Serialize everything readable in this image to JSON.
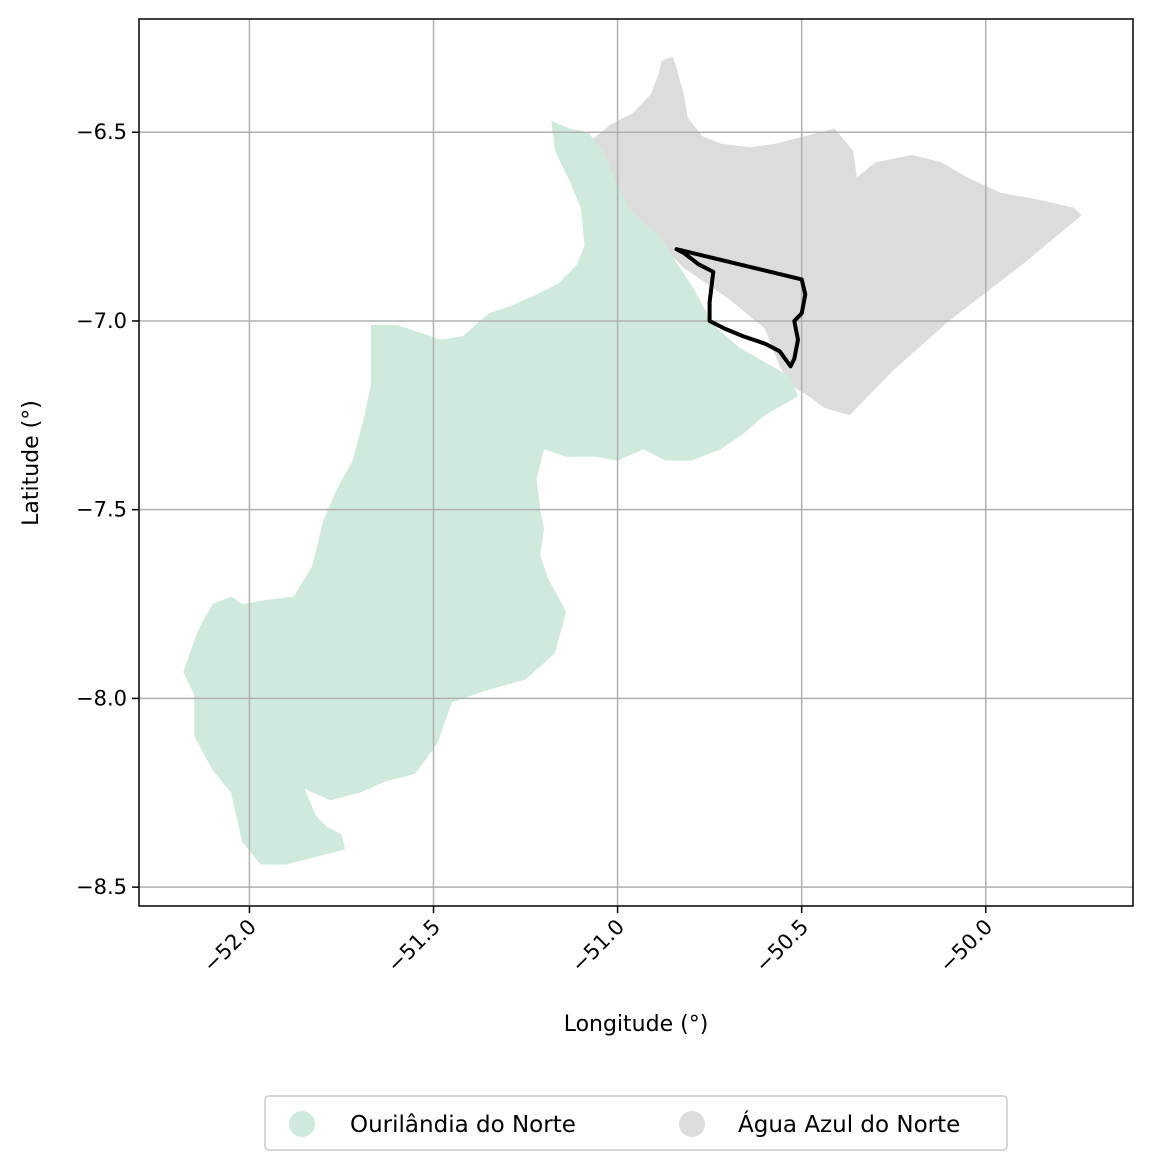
{
  "chart_data": {
    "type": "map",
    "xlabel": "Longitude (°)",
    "ylabel": "Latitude (°)",
    "xlim": [
      -52.3,
      -49.6
    ],
    "ylim": [
      -8.55,
      -6.2
    ],
    "xticks": [
      -52.0,
      -51.5,
      -51.0,
      -50.5,
      -50.0
    ],
    "xtick_labels": [
      "−52.0",
      "−51.5",
      "−51.0",
      "−50.5",
      "−50.0"
    ],
    "yticks": [
      -6.5,
      -7.0,
      -7.5,
      -8.0,
      -8.5
    ],
    "ytick_labels": [
      "−6.5",
      "−7.0",
      "−7.5",
      "−8.0",
      "−8.5"
    ],
    "grid": true,
    "legend_position": "bottom-center",
    "legend": [
      {
        "label": "Ourilândia do Norte",
        "color": "#cfeadd"
      },
      {
        "label": "Água Azul do Norte",
        "color": "#dcdcdc"
      }
    ],
    "regions": [
      {
        "name": "Água Azul do Norte",
        "color": "#dcdcdc",
        "coords": [
          [
            -51.07,
            -6.52
          ],
          [
            -51.02,
            -6.48
          ],
          [
            -50.96,
            -6.45
          ],
          [
            -50.91,
            -6.4
          ],
          [
            -50.89,
            -6.35
          ],
          [
            -50.88,
            -6.31
          ],
          [
            -50.85,
            -6.3
          ],
          [
            -50.84,
            -6.33
          ],
          [
            -50.82,
            -6.4
          ],
          [
            -50.81,
            -6.46
          ],
          [
            -50.77,
            -6.51
          ],
          [
            -50.72,
            -6.53
          ],
          [
            -50.64,
            -6.54
          ],
          [
            -50.57,
            -6.53
          ],
          [
            -50.49,
            -6.51
          ],
          [
            -50.41,
            -6.49
          ],
          [
            -50.36,
            -6.55
          ],
          [
            -50.35,
            -6.62
          ],
          [
            -50.3,
            -6.58
          ],
          [
            -50.2,
            -6.56
          ],
          [
            -50.12,
            -6.58
          ],
          [
            -50.05,
            -6.62
          ],
          [
            -49.96,
            -6.66
          ],
          [
            -49.85,
            -6.68
          ],
          [
            -49.76,
            -6.7
          ],
          [
            -49.74,
            -6.72
          ],
          [
            -49.9,
            -6.85
          ],
          [
            -50.1,
            -7.0
          ],
          [
            -50.25,
            -7.13
          ],
          [
            -50.37,
            -7.25
          ],
          [
            -50.44,
            -7.23
          ],
          [
            -50.48,
            -7.2
          ],
          [
            -50.53,
            -7.17
          ],
          [
            -50.56,
            -7.12
          ],
          [
            -50.6,
            -7.02
          ],
          [
            -50.7,
            -6.94
          ],
          [
            -50.82,
            -6.86
          ],
          [
            -50.91,
            -6.77
          ],
          [
            -50.98,
            -6.7
          ],
          [
            -51.04,
            -6.62
          ]
        ]
      },
      {
        "name": "Ourilândia do Norte",
        "color": "#cfeadd",
        "coords": [
          [
            -51.18,
            -6.47
          ],
          [
            -51.13,
            -6.49
          ],
          [
            -51.08,
            -6.5
          ],
          [
            -51.04,
            -6.55
          ],
          [
            -51.0,
            -6.64
          ],
          [
            -50.97,
            -6.7
          ],
          [
            -50.93,
            -6.74
          ],
          [
            -50.89,
            -6.77
          ],
          [
            -50.85,
            -6.83
          ],
          [
            -50.79,
            -6.92
          ],
          [
            -50.74,
            -7.01
          ],
          [
            -50.67,
            -7.07
          ],
          [
            -50.58,
            -7.12
          ],
          [
            -50.53,
            -7.15
          ],
          [
            -50.51,
            -7.2
          ],
          [
            -50.6,
            -7.25
          ],
          [
            -50.66,
            -7.3
          ],
          [
            -50.72,
            -7.34
          ],
          [
            -50.8,
            -7.37
          ],
          [
            -50.87,
            -7.37
          ],
          [
            -50.93,
            -7.34
          ],
          [
            -51.0,
            -7.37
          ],
          [
            -51.06,
            -7.36
          ],
          [
            -51.14,
            -7.36
          ],
          [
            -51.2,
            -7.34
          ],
          [
            -51.22,
            -7.42
          ],
          [
            -51.21,
            -7.5
          ],
          [
            -51.2,
            -7.55
          ],
          [
            -51.21,
            -7.62
          ],
          [
            -51.19,
            -7.68
          ],
          [
            -51.14,
            -7.77
          ],
          [
            -51.17,
            -7.88
          ],
          [
            -51.25,
            -7.95
          ],
          [
            -51.36,
            -7.98
          ],
          [
            -51.45,
            -8.01
          ],
          [
            -51.49,
            -8.12
          ],
          [
            -51.55,
            -8.2
          ],
          [
            -51.63,
            -8.22
          ],
          [
            -51.7,
            -8.25
          ],
          [
            -51.78,
            -8.27
          ],
          [
            -51.85,
            -8.24
          ],
          [
            -51.82,
            -8.31
          ],
          [
            -51.79,
            -8.34
          ],
          [
            -51.75,
            -8.36
          ],
          [
            -51.74,
            -8.4
          ],
          [
            -51.82,
            -8.42
          ],
          [
            -51.9,
            -8.44
          ],
          [
            -51.97,
            -8.44
          ],
          [
            -52.02,
            -8.38
          ],
          [
            -52.05,
            -8.25
          ],
          [
            -52.1,
            -8.19
          ],
          [
            -52.15,
            -8.1
          ],
          [
            -52.15,
            -7.99
          ],
          [
            -52.18,
            -7.93
          ],
          [
            -52.14,
            -7.82
          ],
          [
            -52.1,
            -7.75
          ],
          [
            -52.05,
            -7.73
          ],
          [
            -52.02,
            -7.75
          ],
          [
            -51.96,
            -7.74
          ],
          [
            -51.88,
            -7.73
          ],
          [
            -51.83,
            -7.65
          ],
          [
            -51.8,
            -7.53
          ],
          [
            -51.76,
            -7.44
          ],
          [
            -51.72,
            -7.37
          ],
          [
            -51.69,
            -7.26
          ],
          [
            -51.67,
            -7.17
          ],
          [
            -51.67,
            -7.01
          ],
          [
            -51.6,
            -7.01
          ],
          [
            -51.54,
            -7.03
          ],
          [
            -51.48,
            -7.05
          ],
          [
            -51.42,
            -7.04
          ],
          [
            -51.35,
            -6.98
          ],
          [
            -51.29,
            -6.96
          ],
          [
            -51.22,
            -6.93
          ],
          [
            -51.16,
            -6.9
          ],
          [
            -51.11,
            -6.85
          ],
          [
            -51.09,
            -6.8
          ],
          [
            -51.1,
            -6.7
          ],
          [
            -51.13,
            -6.63
          ],
          [
            -51.17,
            -6.55
          ]
        ]
      }
    ],
    "outline": {
      "color": "#000000",
      "coords": [
        [
          -50.84,
          -6.81
        ],
        [
          -50.5,
          -6.89
        ],
        [
          -50.49,
          -6.93
        ],
        [
          -50.5,
          -6.98
        ],
        [
          -50.52,
          -7.0
        ],
        [
          -50.51,
          -7.05
        ],
        [
          -50.52,
          -7.1
        ],
        [
          -50.53,
          -7.12
        ],
        [
          -50.56,
          -7.08
        ],
        [
          -50.6,
          -7.06
        ],
        [
          -50.66,
          -7.04
        ],
        [
          -50.71,
          -7.02
        ],
        [
          -50.75,
          -7.0
        ],
        [
          -50.75,
          -6.95
        ],
        [
          -50.74,
          -6.87
        ],
        [
          -50.78,
          -6.85
        ],
        [
          -50.82,
          -6.82
        ],
        [
          -50.84,
          -6.81
        ]
      ]
    }
  }
}
